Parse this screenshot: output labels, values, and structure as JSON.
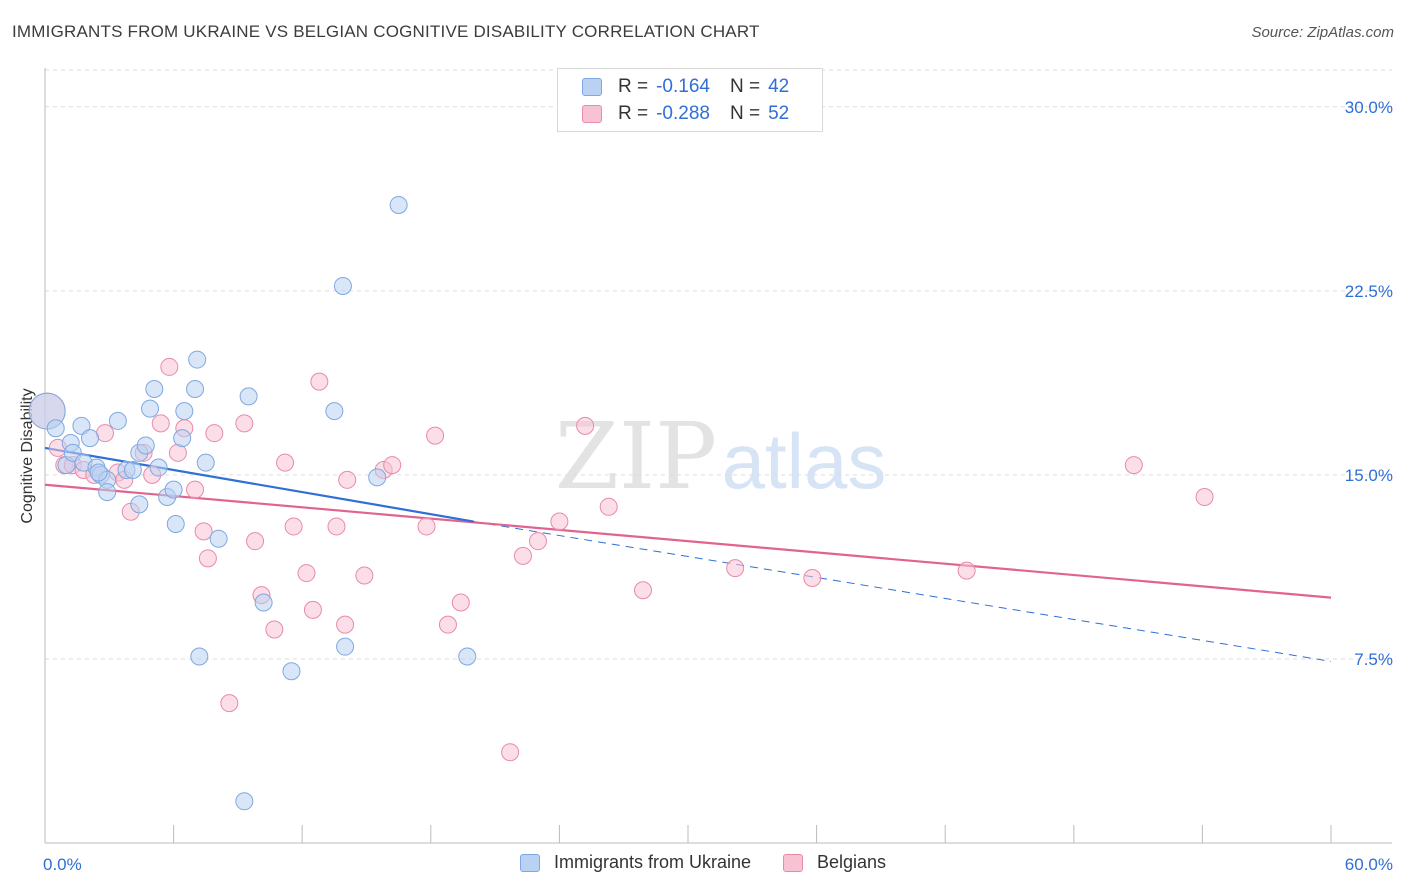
{
  "title": "IMMIGRANTS FROM UKRAINE VS BELGIAN COGNITIVE DISABILITY CORRELATION CHART",
  "source": "Source: ZipAtlas.com",
  "watermark": {
    "zip": "ZIP",
    "atlas": "atlas"
  },
  "legend_top": {
    "rows": [
      {
        "r_label": "R =",
        "r_value": "-0.164",
        "n_label": "N =",
        "n_value": "42"
      },
      {
        "r_label": "R =",
        "r_value": "-0.288",
        "n_label": "N =",
        "n_value": "52"
      }
    ]
  },
  "colors": {
    "ukraine_fill": "#b9d2f3",
    "ukraine_stroke": "#7fa8e0",
    "ukraine_line": "#2f6fd6",
    "belgian_fill": "#f7c3d3",
    "belgian_stroke": "#e98aab",
    "belgian_line": "#e0648f",
    "tick_label": "#2f6fd6",
    "grid": "#dddddd"
  },
  "chart_data": {
    "type": "scatter",
    "title": "IMMIGRANTS FROM UKRAINE VS BELGIAN COGNITIVE DISABILITY CORRELATION CHART",
    "xlabel": "",
    "ylabel": "Cognitive Disability",
    "xlim": [
      0,
      60
    ],
    "ylim": [
      0,
      31.5
    ],
    "x_tick_labels": [
      "0.0%",
      "60.0%"
    ],
    "y_ticks": [
      7.5,
      15.0,
      22.5,
      30.0
    ],
    "y_tick_labels": [
      "7.5%",
      "15.0%",
      "22.5%",
      "30.0%"
    ],
    "grid": "horizontal dashed",
    "legend_placement": "top-center and bottom",
    "series": [
      {
        "name": "Immigrants from Ukraine",
        "r": -0.164,
        "n": 42,
        "trend": {
          "x": [
            0,
            20
          ],
          "y": [
            16.1,
            13.1
          ],
          "dashed_extension": {
            "x": [
              20,
              60
            ],
            "y": [
              13.1,
              7.4
            ]
          }
        },
        "points": [
          [
            0.1,
            17.6
          ],
          [
            0.5,
            16.9
          ],
          [
            1.2,
            16.3
          ],
          [
            1.7,
            17.0
          ],
          [
            2.1,
            16.5
          ],
          [
            1.0,
            15.4
          ],
          [
            1.3,
            15.9
          ],
          [
            1.8,
            15.5
          ],
          [
            2.4,
            15.3
          ],
          [
            2.6,
            15.0
          ],
          [
            2.9,
            14.8
          ],
          [
            2.9,
            14.3
          ],
          [
            3.4,
            17.2
          ],
          [
            3.8,
            15.2
          ],
          [
            4.1,
            15.2
          ],
          [
            4.4,
            15.9
          ],
          [
            4.4,
            13.8
          ],
          [
            4.7,
            16.2
          ],
          [
            4.9,
            17.7
          ],
          [
            5.1,
            18.5
          ],
          [
            5.3,
            15.3
          ],
          [
            5.7,
            14.1
          ],
          [
            6.0,
            14.4
          ],
          [
            6.1,
            13.0
          ],
          [
            6.4,
            16.5
          ],
          [
            6.5,
            17.6
          ],
          [
            7.1,
            19.7
          ],
          [
            7.0,
            18.5
          ],
          [
            7.5,
            15.5
          ],
          [
            8.1,
            12.4
          ],
          [
            9.5,
            18.2
          ],
          [
            10.2,
            9.8
          ],
          [
            11.5,
            7.0
          ],
          [
            13.5,
            17.6
          ],
          [
            13.9,
            22.7
          ],
          [
            14.0,
            8.0
          ],
          [
            15.5,
            14.9
          ],
          [
            16.5,
            26.0
          ],
          [
            19.7,
            7.6
          ],
          [
            7.2,
            7.6
          ],
          [
            9.3,
            1.7
          ],
          [
            2.5,
            15.1
          ]
        ]
      },
      {
        "name": "Belgians",
        "r": -0.288,
        "n": 52,
        "trend": {
          "x": [
            0,
            60
          ],
          "y": [
            14.6,
            10.0
          ]
        },
        "points": [
          [
            0.1,
            17.6
          ],
          [
            0.6,
            16.1
          ],
          [
            0.9,
            15.4
          ],
          [
            1.3,
            15.4
          ],
          [
            1.8,
            15.2
          ],
          [
            2.3,
            15.0
          ],
          [
            2.8,
            16.7
          ],
          [
            3.4,
            15.1
          ],
          [
            3.7,
            14.8
          ],
          [
            4.0,
            13.5
          ],
          [
            4.6,
            15.9
          ],
          [
            5.0,
            15.0
          ],
          [
            5.4,
            17.1
          ],
          [
            5.8,
            19.4
          ],
          [
            6.2,
            15.9
          ],
          [
            6.5,
            16.9
          ],
          [
            7.0,
            14.4
          ],
          [
            7.4,
            12.7
          ],
          [
            7.6,
            11.6
          ],
          [
            7.9,
            16.7
          ],
          [
            8.6,
            5.7
          ],
          [
            9.3,
            17.1
          ],
          [
            9.8,
            12.3
          ],
          [
            10.1,
            10.1
          ],
          [
            10.7,
            8.7
          ],
          [
            11.2,
            15.5
          ],
          [
            11.6,
            12.9
          ],
          [
            12.2,
            11.0
          ],
          [
            12.5,
            9.5
          ],
          [
            12.8,
            18.8
          ],
          [
            13.6,
            12.9
          ],
          [
            14.0,
            8.9
          ],
          [
            14.1,
            14.8
          ],
          [
            14.9,
            10.9
          ],
          [
            15.8,
            15.2
          ],
          [
            16.2,
            15.4
          ],
          [
            17.8,
            12.9
          ],
          [
            18.2,
            16.6
          ],
          [
            18.8,
            8.9
          ],
          [
            19.4,
            9.8
          ],
          [
            21.7,
            3.7
          ],
          [
            22.3,
            11.7
          ],
          [
            23.0,
            12.3
          ],
          [
            24.0,
            13.1
          ],
          [
            25.2,
            17.0
          ],
          [
            26.3,
            13.7
          ],
          [
            27.9,
            10.3
          ],
          [
            32.2,
            11.2
          ],
          [
            35.8,
            10.8
          ],
          [
            43.0,
            11.1
          ],
          [
            50.8,
            15.4
          ],
          [
            54.1,
            14.1
          ]
        ]
      }
    ]
  },
  "legend_bottom": [
    "Immigrants from Ukraine",
    "Belgians"
  ]
}
